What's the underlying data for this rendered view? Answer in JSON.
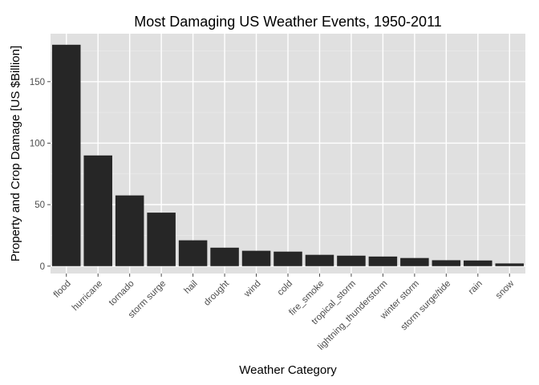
{
  "chart_data": {
    "type": "bar",
    "title": "Most Damaging US Weather Events, 1950-2011",
    "xlabel": "Weather Category",
    "ylabel": "Property and Crop Damage [US $Billion]",
    "categories": [
      "flood",
      "hurricane",
      "tornado",
      "storm surge",
      "hail",
      "drought",
      "wind",
      "cold",
      "fire_smoke",
      "tropical_storm",
      "lightning_thunderstorm",
      "winter storm",
      "storm surge/tide",
      "rain",
      "snow"
    ],
    "values": [
      180,
      90,
      57.5,
      43.5,
      21,
      15,
      12.5,
      11.8,
      9.2,
      8.5,
      7.8,
      6.6,
      4.8,
      4.6,
      2.2
    ],
    "ylim": [
      -6,
      189
    ],
    "yticks": [
      0,
      50,
      100,
      150
    ],
    "grid": true,
    "colors": {
      "bar": "#262626",
      "panel": "#e0e0e0",
      "grid_major": "#ffffff",
      "grid_minor": "#eaeaea"
    }
  }
}
